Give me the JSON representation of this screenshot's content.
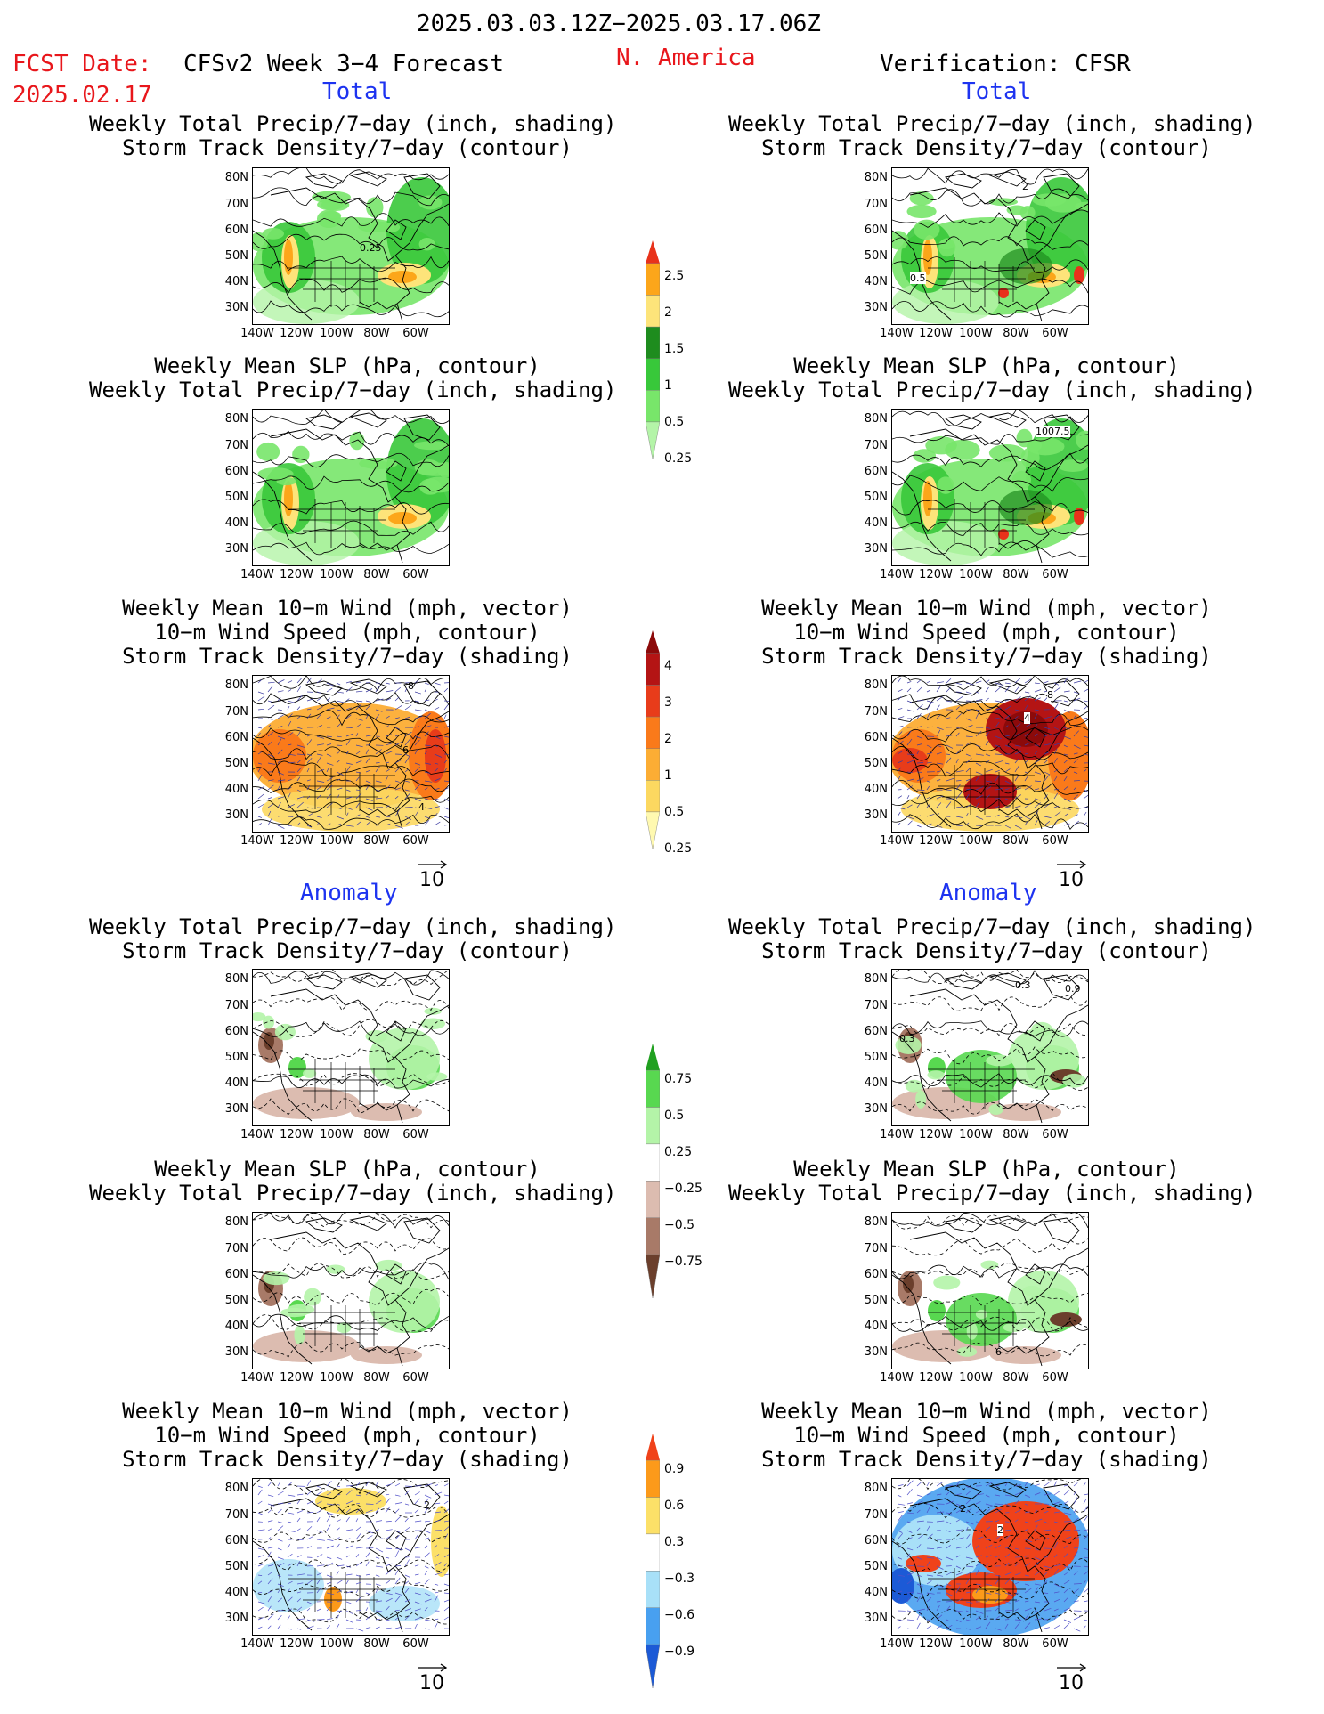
{
  "header": {
    "period": "2025.03.03.12Z−2025.03.17.06Z",
    "fcst_label": "FCST Date:",
    "fcst_date": "2025.02.17",
    "model": "CFSv2 Week 3−4 Forecast",
    "region": "N. America",
    "verification": "Verification: CFSR"
  },
  "sections": {
    "total": "Total",
    "anomaly": "Anomaly"
  },
  "panel_titles": {
    "precip_storm": "Weekly Total Precip/7−day (inch, shading)\nStorm Track Density/7−day (contour)",
    "slp_precip": "Weekly Mean SLP (hPa, contour)\nWeekly Total Precip/7−day (inch, shading)",
    "wind_storm": "Weekly Mean 10−m Wind (mph, vector)\n10−m Wind Speed (mph, contour)\nStorm Track Density/7−day (shading)"
  },
  "axes": {
    "lat": [
      "80N",
      "70N",
      "60N",
      "50N",
      "40N",
      "30N"
    ],
    "lon": [
      "140W",
      "120W",
      "100W",
      "80W",
      "60W"
    ]
  },
  "vector_ref": "10",
  "colorbars": {
    "precip_total": [
      "2.5",
      "2",
      "1.5",
      "1",
      "0.5",
      "0.25"
    ],
    "storm_total": [
      "4",
      "3",
      "2",
      "1",
      "0.5",
      "0.25"
    ],
    "precip_anom": [
      "0.75",
      "0.5",
      "0.25",
      "−0.25",
      "−0.5",
      "−0.75"
    ],
    "storm_anom": [
      "0.9",
      "0.6",
      "0.3",
      "−0.3",
      "−0.6",
      "−0.9"
    ]
  },
  "map_labels": {
    "l1": "0.25",
    "r1a": "0.5",
    "r1b": "2",
    "r2": "1007.5",
    "l3a": "8",
    "l3b": "6",
    "l3c": "4",
    "r3a": "8",
    "r3b": "4",
    "r4a": "0.3",
    "r4b": "0.9",
    "r4c": "0.3",
    "r5": "6",
    "l6": "2",
    "r6a": "2",
    "r6b": "2"
  },
  "colors": {
    "title_red": "#e8161b",
    "section_blue": "#1d33f0",
    "precip": [
      "#b4f4a8",
      "#78e66a",
      "#38c83a",
      "#1e8c1e",
      "#fde47a",
      "#fca61a",
      "#e8321b"
    ],
    "storm": [
      "#fff9b0",
      "#fcd860",
      "#fcad34",
      "#fa7a1a",
      "#e83c1a",
      "#b41414",
      "#8c0a0a"
    ],
    "anom_precip": [
      "#6b3f2c",
      "#a87a68",
      "#dcbcb0",
      "#ffffff",
      "#b4f4a8",
      "#58d850",
      "#20a020"
    ],
    "anom_storm": [
      "#1c5ad6",
      "#48a0f0",
      "#a8e0f8",
      "#ffffff",
      "#fce068",
      "#fc9a1a",
      "#f0421a"
    ]
  }
}
